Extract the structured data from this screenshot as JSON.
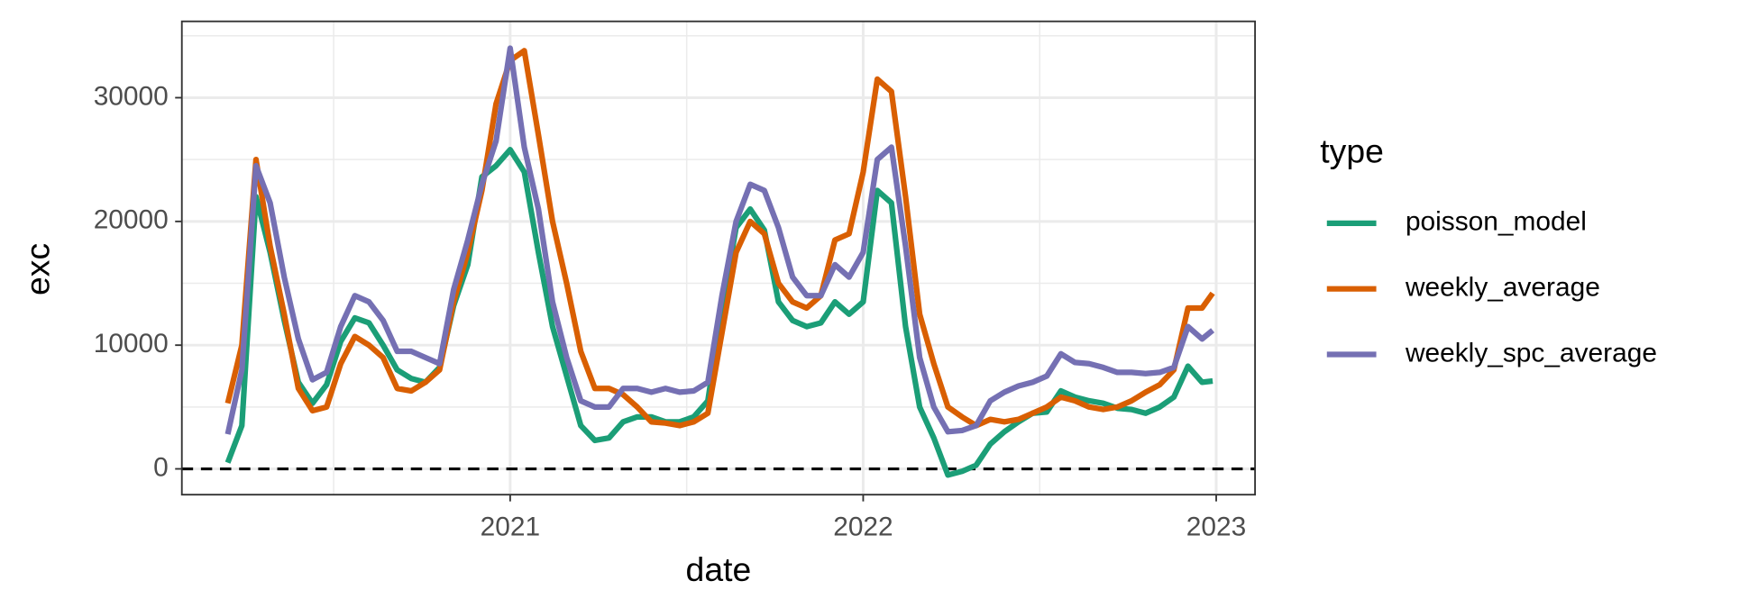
{
  "chart_data": {
    "type": "line",
    "x_label": "date",
    "y_label": "exc",
    "legend_title": "type",
    "legend": "right",
    "x": [
      2020.2,
      2020.24,
      2020.28,
      2020.32,
      2020.36,
      2020.4,
      2020.44,
      2020.48,
      2020.52,
      2020.56,
      2020.6,
      2020.64,
      2020.68,
      2020.72,
      2020.76,
      2020.8,
      2020.84,
      2020.88,
      2020.92,
      2020.96,
      2021.0,
      2021.04,
      2021.08,
      2021.12,
      2021.16,
      2021.2,
      2021.24,
      2021.28,
      2021.32,
      2021.36,
      2021.4,
      2021.44,
      2021.48,
      2021.52,
      2021.56,
      2021.6,
      2021.64,
      2021.68,
      2021.72,
      2021.76,
      2021.8,
      2021.84,
      2021.88,
      2021.92,
      2021.96,
      2022.0,
      2022.04,
      2022.08,
      2022.12,
      2022.16,
      2022.2,
      2022.24,
      2022.28,
      2022.32,
      2022.36,
      2022.4,
      2022.44,
      2022.48,
      2022.52,
      2022.56,
      2022.6,
      2022.64,
      2022.68,
      2022.72,
      2022.76,
      2022.8,
      2022.84,
      2022.88,
      2022.92,
      2022.96,
      2022.99
    ],
    "series": [
      {
        "name": "poisson_model",
        "color": "#1b9e77",
        "values": [
          500,
          3500,
          22000,
          17500,
          12000,
          7000,
          5300,
          6800,
          10300,
          12200,
          11800,
          10000,
          8000,
          7300,
          7000,
          8200,
          13200,
          16500,
          23600,
          24500,
          25800,
          24000,
          17500,
          11500,
          7500,
          3500,
          2300,
          2500,
          3800,
          4200,
          4200,
          3800,
          3800,
          4200,
          5500,
          13000,
          19500,
          21000,
          19300,
          13500,
          12000,
          11500,
          11800,
          13500,
          12500,
          13500,
          22500,
          21500,
          11500,
          5000,
          2500,
          -500,
          -200,
          300,
          2000,
          3000,
          3800,
          4500,
          4600,
          6300,
          5800,
          5500,
          5300,
          4900,
          4800,
          4500,
          5000,
          5800,
          8300,
          7000,
          7100
        ]
      },
      {
        "name": "weekly_average",
        "color": "#d95f02",
        "values": [
          5300,
          10000,
          25000,
          18000,
          12500,
          6500,
          4700,
          5000,
          8500,
          10700,
          10000,
          9000,
          6500,
          6300,
          7000,
          8000,
          13500,
          17500,
          22500,
          29500,
          33000,
          33800,
          27000,
          20000,
          15000,
          9500,
          6500,
          6500,
          6000,
          5000,
          3800,
          3700,
          3500,
          3800,
          4500,
          11000,
          17500,
          20000,
          19000,
          15000,
          13500,
          13000,
          14000,
          18500,
          19000,
          24000,
          31500,
          30500,
          22000,
          12500,
          8500,
          5000,
          4200,
          3500,
          4000,
          3800,
          4000,
          4500,
          5000,
          5800,
          5500,
          5000,
          4800,
          5000,
          5500,
          6200,
          6800,
          8000,
          13000,
          13000,
          14200
        ]
      },
      {
        "name": "weekly_spc_average",
        "color": "#7570b3",
        "values": [
          2800,
          8000,
          24500,
          21500,
          15500,
          10500,
          7200,
          7800,
          11500,
          14000,
          13500,
          12000,
          9500,
          9500,
          9000,
          8500,
          14500,
          18500,
          23000,
          26500,
          34000,
          26000,
          21000,
          13500,
          9000,
          5500,
          5000,
          5000,
          6500,
          6500,
          6200,
          6500,
          6200,
          6300,
          7000,
          14000,
          20000,
          23000,
          22500,
          19500,
          15500,
          14000,
          14000,
          16500,
          15500,
          17500,
          25000,
          26000,
          18000,
          9000,
          5000,
          3000,
          3100,
          3500,
          5500,
          6200,
          6700,
          7000,
          7500,
          9300,
          8600,
          8500,
          8200,
          7800,
          7800,
          7700,
          7800,
          8200,
          11500,
          10500,
          11200
        ]
      }
    ],
    "xlim": [
      2020.07,
      2023.11
    ],
    "xticks": [
      2021,
      2022,
      2023
    ],
    "minor_xticks": [
      2020.5,
      2021.5,
      2022.5
    ],
    "ylim": [
      -2085,
      36170
    ],
    "yticks": [
      0,
      10000,
      20000,
      30000
    ],
    "minor_yticks": [
      5000,
      15000,
      25000,
      35000
    ],
    "grid": true,
    "hline": 0
  }
}
